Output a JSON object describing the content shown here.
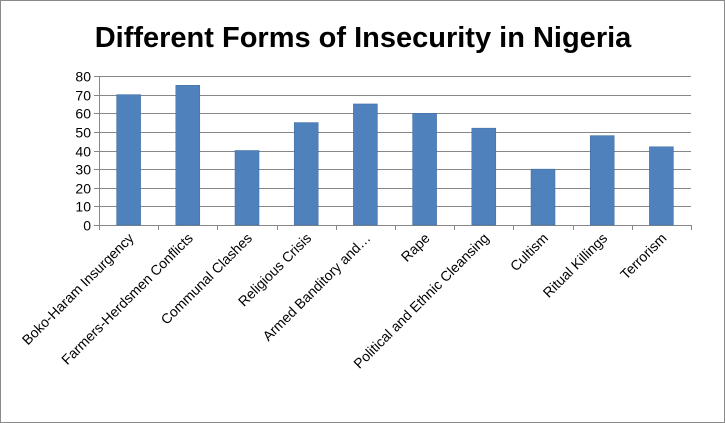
{
  "chart_data": {
    "type": "bar",
    "title": "Different Forms of Insecurity in Nigeria",
    "xlabel": "",
    "ylabel": "",
    "categories": [
      "Boko-Haram Insurgency",
      "Farmers-Herdsmen Conflicts",
      "Communal Clashes",
      "Religious Crisis",
      "Armed Banditory and…",
      "Rape",
      "Political and Ethnic Cleansing",
      "Cultism",
      "Ritual Killings",
      "Terrorism"
    ],
    "values": [
      70,
      75,
      40,
      55,
      65,
      60,
      52,
      30,
      48,
      42
    ],
    "ylim": [
      0,
      80
    ],
    "yticks": [
      0,
      10,
      20,
      30,
      40,
      50,
      60,
      70,
      80
    ],
    "grid": true,
    "legend": "none",
    "bar_color": "#4F81BD",
    "grid_color": "#878787"
  }
}
